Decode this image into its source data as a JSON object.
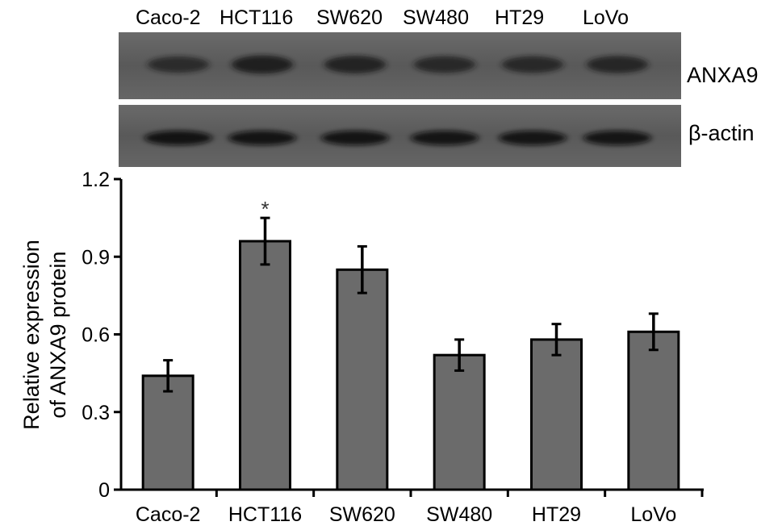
{
  "blot": {
    "lanes": [
      "Caco-2",
      "HCT116",
      "SW620",
      "SW480",
      "HT29",
      "LoVo"
    ],
    "target_label": "ANXA9",
    "control_label": "β-actin",
    "target_band_darkness": [
      0.55,
      0.85,
      0.75,
      0.62,
      0.62,
      0.68
    ],
    "control_band_darkness": [
      0.95,
      0.92,
      0.92,
      0.9,
      0.9,
      0.9
    ]
  },
  "chart_data": {
    "type": "bar",
    "categories": [
      "Caco-2",
      "HCT116",
      "SW620",
      "SW480",
      "HT29",
      "LoVo"
    ],
    "values": [
      0.44,
      0.96,
      0.85,
      0.52,
      0.58,
      0.61
    ],
    "errors": [
      0.06,
      0.09,
      0.09,
      0.06,
      0.06,
      0.07
    ],
    "annotations": [
      "",
      "*",
      "",
      "",
      "",
      ""
    ],
    "xlabel": "",
    "ylabel": "Relative expression of ANXA9 protein",
    "ylabel_lines": [
      "Relative expression",
      "of ANXA9 protein"
    ],
    "ylim": [
      0,
      1.2
    ],
    "yticks": [
      "0",
      "0.3",
      "0.6",
      "0.9",
      "1.2"
    ],
    "ytick_values": [
      0,
      0.3,
      0.6,
      0.9,
      1.2
    ],
    "grid": false,
    "bar_color": "#6b6b6b"
  },
  "colors": {
    "blot_background": "#5e5e5e",
    "band": "#141414",
    "axis": "#000000"
  }
}
